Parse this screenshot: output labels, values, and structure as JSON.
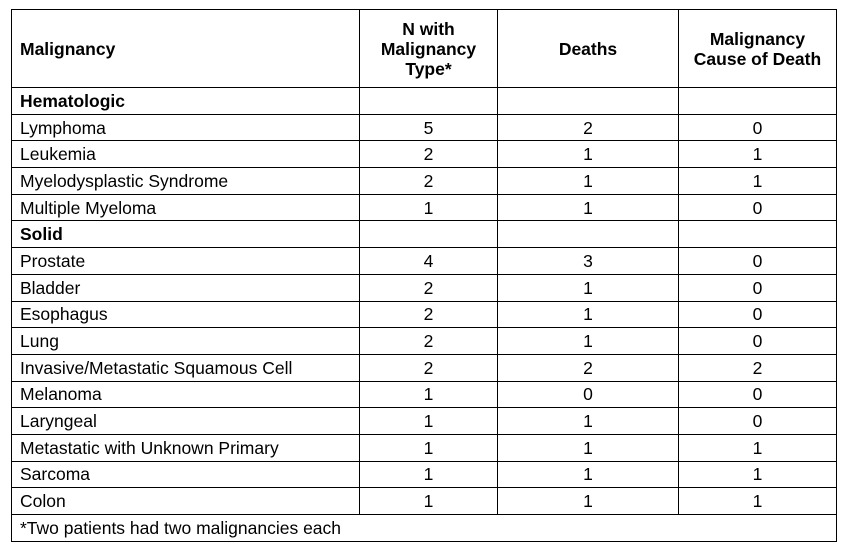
{
  "headers": [
    "Malignancy",
    "N with Malignancy Type*",
    "Deaths",
    "Malignancy Cause of Death"
  ],
  "groups": [
    {
      "category": "Hematologic",
      "rows": [
        [
          "Lymphoma",
          "5",
          "2",
          "0"
        ],
        [
          "Leukemia",
          "2",
          "1",
          "1"
        ],
        [
          "Myelodysplastic Syndrome",
          "2",
          "1",
          "1"
        ],
        [
          "Multiple Myeloma",
          "1",
          "1",
          "0"
        ]
      ]
    },
    {
      "category": "Solid",
      "rows": [
        [
          "Prostate",
          "4",
          "3",
          "0"
        ],
        [
          "Bladder",
          "2",
          "1",
          "0"
        ],
        [
          "Esophagus",
          "2",
          "1",
          "0"
        ],
        [
          "Lung",
          "2",
          "1",
          "0"
        ],
        [
          "Invasive/Metastatic Squamous Cell",
          "2",
          "2",
          "2"
        ],
        [
          "Melanoma",
          "1",
          "0",
          "0"
        ],
        [
          "Laryngeal",
          "1",
          "1",
          "0"
        ],
        [
          "Metastatic with Unknown Primary",
          "1",
          "1",
          "1"
        ],
        [
          "Sarcoma",
          "1",
          "1",
          "1"
        ],
        [
          "Colon",
          "1",
          "1",
          "1"
        ]
      ]
    }
  ],
  "footnote": "*Two patients had two malignancies each"
}
